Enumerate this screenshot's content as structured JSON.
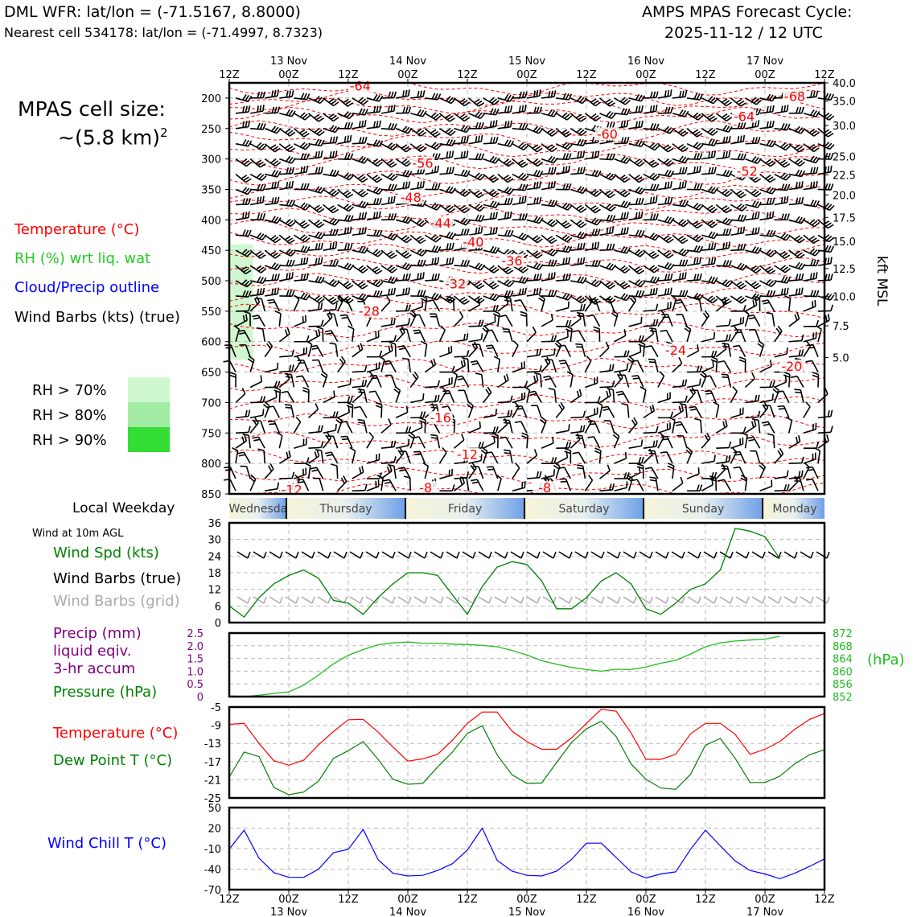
{
  "header": {
    "title_left": "DML WFR: lat/lon = (-71.5167, 8.8000)",
    "subtitle_left": "Nearest cell 534178: lat/lon = (-71.4997, 8.7323)",
    "title_right_1": "AMPS MPAS Forecast Cycle:",
    "title_right_2": "2025-11-12 / 12 UTC"
  },
  "legend": {
    "cell_size_1": "MPAS cell size:",
    "cell_size_2": "~(5.8 km)",
    "cell_size_sup": "2",
    "temperature": "Temperature (°C)",
    "rh": "RH (%) wrt liq. wat",
    "cloud": "Cloud/Precip outline",
    "wind_barbs": "Wind Barbs (kts) (true)",
    "rh70": "RH > 70%",
    "rh80": "RH > 80%",
    "rh90": "RH > 90%",
    "local_weekday": "Local Weekday",
    "wind10m": "Wind at 10m AGL",
    "wind_spd": "Wind Spd (kts)",
    "barbs_true": "Wind Barbs (true)",
    "barbs_grid": "Wind Barbs (grid)",
    "precip_1": "Precip (mm)",
    "precip_2": "liquid eqiv.",
    "precip_3": "3-hr accum",
    "pressure": "Pressure (hPa)",
    "temp2": "Temperature (°C)",
    "dewpt": "Dew Point T (°C)",
    "windchill": "Wind Chill T (°C)",
    "hpa_unit": "(hPa)",
    "kft": "kft MSL"
  },
  "colors": {
    "temperature": "#ff0000",
    "rh_label": "#22cc22",
    "cloud": "#0000ff",
    "wind_speed": "#008000",
    "precip": "#800080",
    "pressure": "#22bb22",
    "dewpoint": "#008000",
    "windchill": "#0000ff",
    "rh70": "#d0f8d0",
    "rh80": "#a2eba2",
    "rh90": "#33dd33",
    "barb_grid": "#aaaaaa"
  },
  "time_axis": {
    "ticks": [
      "12Z",
      "00Z",
      "12Z",
      "00Z",
      "12Z",
      "00Z",
      "12Z",
      "00Z",
      "12Z",
      "00Z",
      "12Z"
    ],
    "dates": [
      "13 Nov",
      "14 Nov",
      "15 Nov",
      "16 Nov",
      "17 Nov"
    ]
  },
  "weekdays": [
    "Wednesday",
    "Thursday",
    "Friday",
    "Saturday",
    "Sunday",
    "Monday"
  ],
  "chart_data": [
    {
      "type": "heatmap",
      "name": "time-height cross section",
      "y_pressure_ticks": [
        200,
        250,
        300,
        350,
        400,
        450,
        500,
        550,
        600,
        650,
        700,
        750,
        800,
        850
      ],
      "y_kft_ticks": [
        "40.0",
        "35.0",
        "30.0",
        "25.0",
        "22.5",
        "20.0",
        "17.5",
        "15.0",
        "12.5",
        "10.0",
        "7.5",
        "5.0"
      ],
      "temperature_labels": [
        {
          "label": "-64",
          "t": 2.2,
          "p": 185
        },
        {
          "label": "-68",
          "t": 9.5,
          "p": 202
        },
        {
          "label": "-64",
          "t": 8.65,
          "p": 235
        },
        {
          "label": "-60",
          "t": 6.35,
          "p": 264
        },
        {
          "label": "-56",
          "t": 3.25,
          "p": 312
        },
        {
          "label": "-52",
          "t": 8.7,
          "p": 325
        },
        {
          "label": "-48",
          "t": 3.05,
          "p": 368
        },
        {
          "label": "-44",
          "t": 3.55,
          "p": 410
        },
        {
          "label": "-40",
          "t": 4.1,
          "p": 441
        },
        {
          "label": "-36",
          "t": 4.75,
          "p": 472
        },
        {
          "label": "-32",
          "t": 3.8,
          "p": 510
        },
        {
          "label": "-28",
          "t": 2.35,
          "p": 555
        },
        {
          "label": "-24",
          "t": 7.5,
          "p": 619
        },
        {
          "label": "-20",
          "t": 9.45,
          "p": 645
        },
        {
          "label": "-16",
          "t": 3.55,
          "p": 730
        },
        {
          "label": "-12",
          "t": 4.0,
          "p": 790
        },
        {
          "label": "-12",
          "t": 1.05,
          "p": 848
        },
        {
          "label": "-8",
          "t": 3.3,
          "p": 845
        },
        {
          "label": "-8",
          "t": 5.3,
          "p": 845
        }
      ],
      "rh_shading": [
        {
          "level": "RH > 70%",
          "t_start": 0.0,
          "t_end": 0.4,
          "p_top": 440,
          "p_bottom": 630
        }
      ]
    },
    {
      "type": "line",
      "name": "wind speed 10m",
      "ylabel": "Wind Spd (kts)",
      "yticks": [
        0,
        6,
        12,
        18,
        24,
        30,
        36
      ],
      "ylim": [
        0,
        36
      ],
      "x_step_hours": 3,
      "values": [
        6,
        2,
        9,
        14,
        17,
        19,
        16,
        8,
        7,
        3,
        9,
        14,
        18,
        18,
        17,
        10,
        3,
        13,
        20,
        22,
        21,
        15,
        5,
        5,
        9,
        15,
        18,
        14,
        5,
        3,
        7,
        12,
        14,
        19,
        34,
        33,
        31,
        23
      ]
    },
    {
      "type": "line",
      "name": "pressure",
      "ylabel": "Pressure (hPa)",
      "yticks_left": [
        0,
        0.5,
        1.0,
        1.5,
        2.0,
        2.5
      ],
      "yticks_left_labels": [
        "0",
        "0.5",
        "1.0",
        "1.5",
        "2.0",
        "2.5"
      ],
      "yticks_right": [
        852,
        856,
        860,
        864,
        868,
        872
      ],
      "ylim": [
        852,
        872
      ],
      "ylim_left": [
        0,
        2.5
      ],
      "x_step_hours": 3,
      "values": [
        852.2,
        852.0,
        852.4,
        853.0,
        853.5,
        855.6,
        858.8,
        862.3,
        865.0,
        866.8,
        868.3,
        868.9,
        869.2,
        868.8,
        868.8,
        868.5,
        868.4,
        868.1,
        867.7,
        866.5,
        865.1,
        863.3,
        862.2,
        861.2,
        860.5,
        860.0,
        860.6,
        860.5,
        861.3,
        862.5,
        863.4,
        865.4,
        867.7,
        868.9,
        869.5,
        869.8,
        870.1,
        871.0
      ]
    },
    {
      "type": "line",
      "name": "temperature and dew point 2m",
      "yticks": [
        -25,
        -21,
        -17,
        -13,
        -9,
        -5
      ],
      "ylim": [
        -25,
        -5
      ],
      "x_step_hours": 3,
      "series": [
        {
          "name": "Temperature (°C)",
          "color": "#ff0000",
          "values": [
            -8.8,
            -8.6,
            -13,
            -16.8,
            -17.8,
            -16.7,
            -13.3,
            -10.4,
            -7.8,
            -7.7,
            -10.5,
            -13.8,
            -16.9,
            -16.4,
            -15.4,
            -12.3,
            -8.6,
            -6.1,
            -6.1,
            -10.3,
            -12.6,
            -14.3,
            -14.3,
            -11.8,
            -8.6,
            -5.5,
            -5.9,
            -10.7,
            -16.5,
            -16.5,
            -15.4,
            -10.9,
            -8.6,
            -8.6,
            -11.0,
            -15.4,
            -14.3,
            -12.6,
            -9.9,
            -7.7,
            -6.4
          ]
        },
        {
          "name": "Dew Point T (°C)",
          "color": "#008000",
          "values": [
            -20.4,
            -14.9,
            -15.9,
            -22.7,
            -24.3,
            -23.7,
            -21.3,
            -16.3,
            -14.6,
            -12.6,
            -16.5,
            -20.9,
            -22.0,
            -21.8,
            -18.2,
            -14.9,
            -10.8,
            -9.1,
            -15.5,
            -19.9,
            -21.8,
            -21.7,
            -17.2,
            -12.8,
            -9.8,
            -8.1,
            -11.5,
            -17.5,
            -20.9,
            -22.8,
            -23.1,
            -19.8,
            -13.4,
            -11.9,
            -16.3,
            -21.6,
            -21.6,
            -20.2,
            -17.5,
            -15.5,
            -14.4
          ]
        }
      ]
    },
    {
      "type": "line",
      "name": "wind chill",
      "ylabel": "Wind Chill T (°C)",
      "yticks": [
        -70,
        -40,
        -10,
        20,
        50
      ],
      "ylim": [
        -70,
        50
      ],
      "x_step_hours": 3,
      "values": [
        -11,
        17,
        -24,
        -45,
        -52,
        -52,
        -40,
        -16,
        -11,
        18,
        -26,
        -46,
        -50,
        -49,
        -42,
        -32,
        -12,
        20,
        -27,
        -43,
        -49,
        -50,
        -43,
        -26,
        -2,
        -2,
        -23,
        -44,
        -53,
        -47,
        -44,
        -11,
        17,
        -6,
        -28,
        -42,
        -47,
        -54,
        -46,
        -36,
        -25
      ]
    }
  ]
}
